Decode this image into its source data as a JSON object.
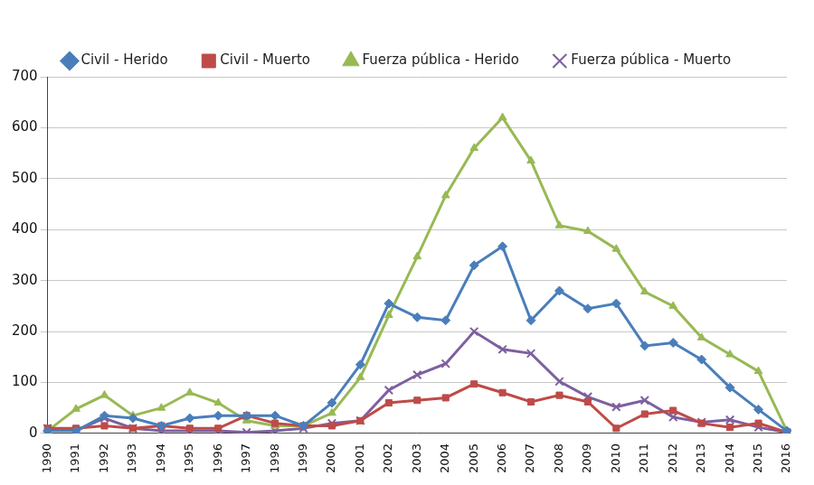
{
  "chart_data": {
    "type": "line",
    "categories": [
      "1990",
      "1991",
      "1992",
      "1993",
      "1994",
      "1995",
      "1996",
      "1997",
      "1998",
      "1999",
      "2000",
      "2001",
      "2002",
      "2003",
      "2004",
      "2005",
      "2006",
      "2007",
      "2008",
      "2009",
      "2010",
      "2011",
      "2012",
      "2013",
      "2014",
      "2015",
      "2016"
    ],
    "series": [
      {
        "name": "Civil - Herido",
        "color": "#4a7ebb",
        "marker": "diamond",
        "values": [
          5,
          5,
          35,
          30,
          15,
          30,
          35,
          35,
          35,
          15,
          60,
          135,
          255,
          228,
          222,
          330,
          367,
          222,
          280,
          245,
          255,
          172,
          178,
          145,
          90,
          47,
          5
        ]
      },
      {
        "name": "Civil - Muerto",
        "color": "#be4b48",
        "marker": "square",
        "values": [
          10,
          10,
          15,
          10,
          15,
          10,
          10,
          35,
          20,
          15,
          15,
          25,
          60,
          65,
          70,
          97,
          80,
          62,
          75,
          62,
          10,
          38,
          45,
          20,
          12,
          20,
          2
        ]
      },
      {
        "name": "Fuerza pública - Herido",
        "color": "#98b954",
        "marker": "triangle",
        "values": [
          5,
          48,
          75,
          35,
          50,
          80,
          60,
          25,
          15,
          15,
          40,
          110,
          232,
          347,
          467,
          560,
          620,
          535,
          408,
          397,
          362,
          278,
          250,
          188,
          155,
          122,
          5
        ]
      },
      {
        "name": "Fuerza pública - Muerto",
        "color": "#7d60a0",
        "marker": "x",
        "values": [
          10,
          5,
          30,
          10,
          5,
          5,
          5,
          2,
          5,
          10,
          20,
          25,
          85,
          115,
          137,
          200,
          165,
          157,
          102,
          72,
          52,
          65,
          32,
          22,
          27,
          12,
          2
        ]
      }
    ],
    "ylim": [
      0,
      700
    ],
    "yticks": [
      0,
      100,
      200,
      300,
      400,
      500,
      600,
      700
    ],
    "grid": true,
    "legend": "top"
  }
}
